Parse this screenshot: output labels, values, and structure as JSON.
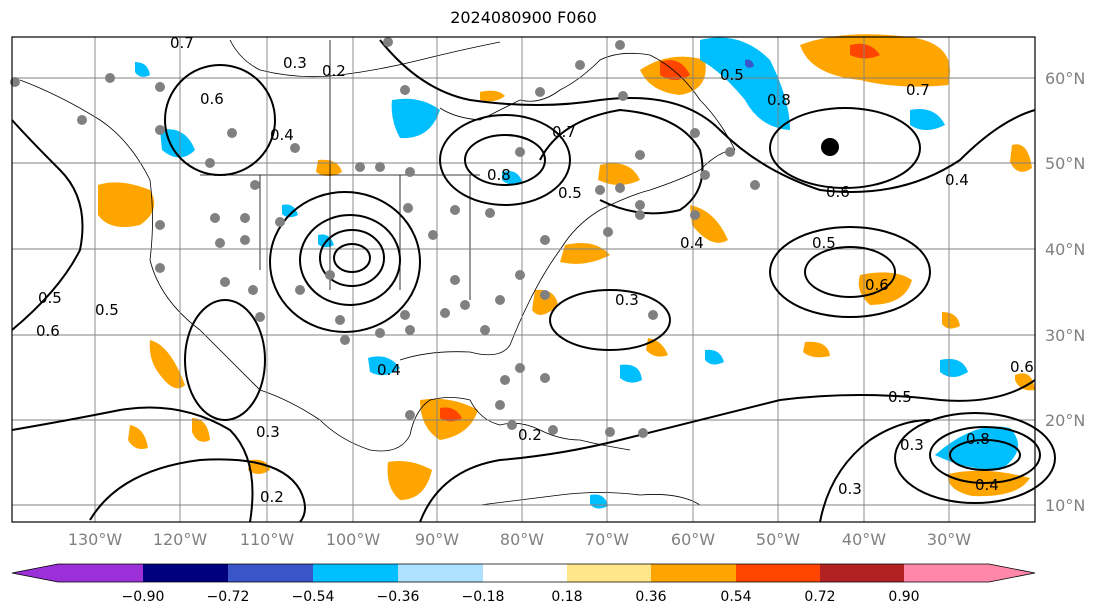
{
  "title": "2024080900 F060",
  "map": {
    "projection": "plate-carree",
    "lon_labels": [
      "130°W",
      "120°W",
      "110°W",
      "100°W",
      "90°W",
      "80°W",
      "70°W",
      "60°W",
      "50°W",
      "40°W",
      "30°W"
    ],
    "lat_labels": [
      "60°N",
      "50°N",
      "40°N",
      "30°N",
      "20°N",
      "10°N"
    ],
    "contour_labels": [
      "0.7",
      "0.3",
      "0.2",
      "0.6",
      "0.4",
      "0.5",
      "0.7",
      "0.8",
      "0.5",
      "0.6",
      "0.4",
      "0.5",
      "0.6",
      "0.5",
      "0.3",
      "0.4",
      "0.3",
      "0.2",
      "0.2",
      "0.3",
      "0.5",
      "0.8",
      "0.6",
      "0.4",
      "0.7",
      "0.5",
      "0.8",
      "0.6",
      "0.4",
      "0.3"
    ]
  },
  "colorbar": {
    "tick_labels": [
      "−0.90",
      "−0.72",
      "−0.54",
      "−0.36",
      "−0.18",
      "0.18",
      "0.36",
      "0.54",
      "0.72",
      "0.90"
    ],
    "colors": [
      "#9b30d8",
      "#00007f",
      "#3a55c8",
      "#00bfff",
      "#aee0ff",
      "#ffffff",
      "#ffe68a",
      "#ffa500",
      "#ff4500",
      "#b22222",
      "#ff88aa"
    ]
  },
  "colors": {
    "frame": "#000000",
    "grid": "#808080",
    "station": "#808080"
  }
}
